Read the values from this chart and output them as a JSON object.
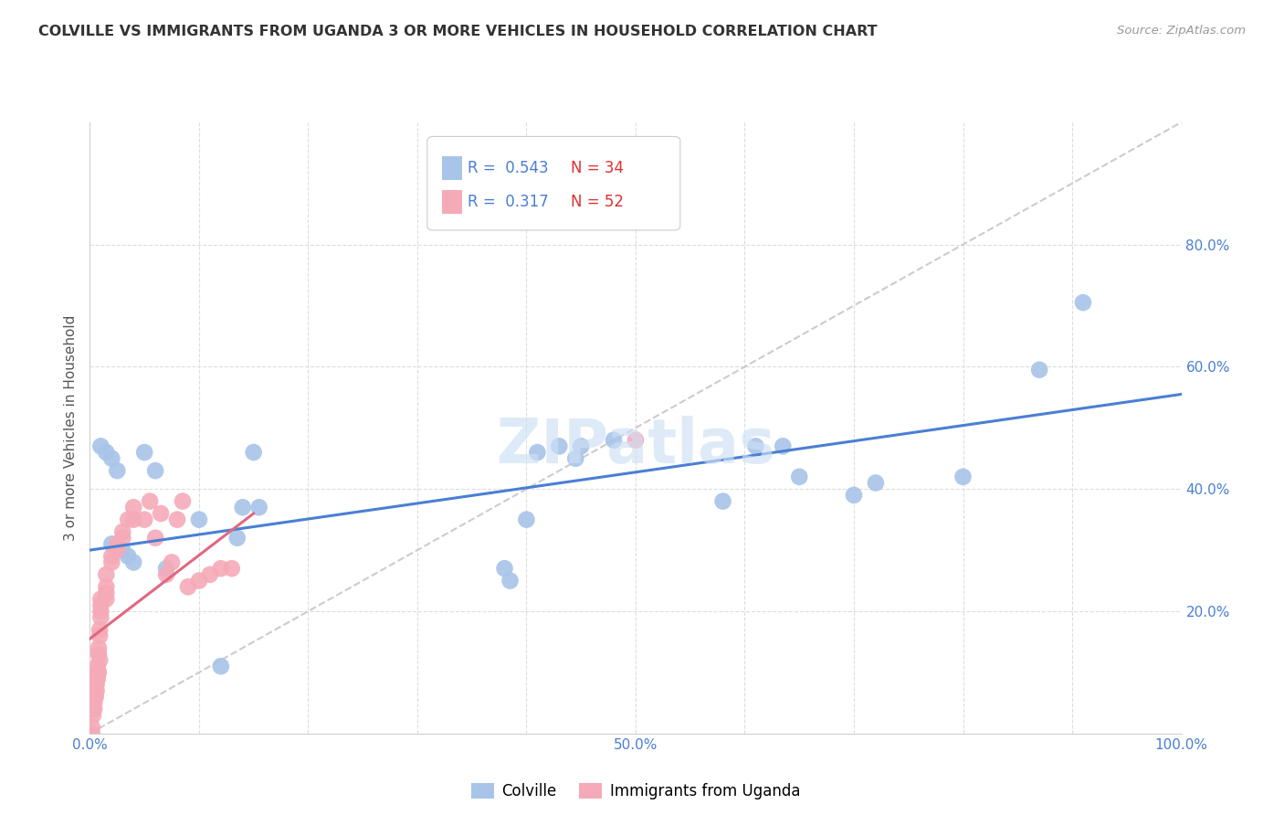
{
  "title": "COLVILLE VS IMMIGRANTS FROM UGANDA 3 OR MORE VEHICLES IN HOUSEHOLD CORRELATION CHART",
  "source": "Source: ZipAtlas.com",
  "ylabel": "3 or more Vehicles in Household",
  "xlim": [
    0.0,
    1.0
  ],
  "ylim": [
    0.0,
    1.0
  ],
  "xtick_positions": [
    0.0,
    0.1,
    0.2,
    0.3,
    0.4,
    0.5,
    0.6,
    0.7,
    0.8,
    0.9,
    1.0
  ],
  "xticklabels": [
    "0.0%",
    "",
    "",
    "",
    "",
    "50.0%",
    "",
    "",
    "",
    "",
    "100.0%"
  ],
  "ytick_positions": [
    0.0,
    0.2,
    0.4,
    0.6,
    0.8,
    1.0
  ],
  "yticklabels_right": [
    "",
    "20.0%",
    "40.0%",
    "60.0%",
    "80.0%",
    ""
  ],
  "blue_R": "0.543",
  "blue_N": "34",
  "pink_R": "0.317",
  "pink_N": "52",
  "blue_color": "#a8c4e8",
  "pink_color": "#f5aab8",
  "blue_line_color": "#4a7fd4",
  "pink_line_color": "#e06880",
  "diagonal_color": "#cccccc",
  "grid_color": "#dddddd",
  "watermark": "ZIPatlas",
  "blue_points_x": [
    0.01,
    0.015,
    0.02,
    0.025,
    0.02,
    0.03,
    0.035,
    0.04,
    0.05,
    0.06,
    0.07,
    0.1,
    0.12,
    0.135,
    0.14,
    0.15,
    0.155,
    0.38,
    0.385,
    0.41,
    0.43,
    0.445,
    0.45,
    0.48,
    0.4,
    0.58,
    0.61,
    0.635,
    0.65,
    0.7,
    0.72,
    0.8,
    0.87,
    0.91
  ],
  "blue_points_y": [
    0.47,
    0.46,
    0.45,
    0.43,
    0.31,
    0.3,
    0.29,
    0.28,
    0.46,
    0.43,
    0.27,
    0.35,
    0.11,
    0.32,
    0.37,
    0.46,
    0.37,
    0.27,
    0.25,
    0.46,
    0.47,
    0.45,
    0.47,
    0.48,
    0.35,
    0.38,
    0.47,
    0.47,
    0.42,
    0.39,
    0.41,
    0.42,
    0.595,
    0.705
  ],
  "pink_points_x": [
    0.002,
    0.003,
    0.004,
    0.005,
    0.005,
    0.006,
    0.006,
    0.007,
    0.007,
    0.008,
    0.008,
    0.009,
    0.009,
    0.01,
    0.01,
    0.01,
    0.01,
    0.015,
    0.015,
    0.015,
    0.015,
    0.02,
    0.02,
    0.025,
    0.025,
    0.03,
    0.03,
    0.035,
    0.04,
    0.04,
    0.05,
    0.055,
    0.06,
    0.065,
    0.07,
    0.075,
    0.08,
    0.085,
    0.09,
    0.1,
    0.11,
    0.12,
    0.13,
    0.5,
    0.002,
    0.003,
    0.004,
    0.005,
    0.006,
    0.007,
    0.008,
    0.009
  ],
  "pink_points_y": [
    0.0,
    0.04,
    0.05,
    0.06,
    0.07,
    0.08,
    0.09,
    0.1,
    0.11,
    0.13,
    0.14,
    0.16,
    0.17,
    0.19,
    0.2,
    0.21,
    0.22,
    0.22,
    0.23,
    0.24,
    0.26,
    0.28,
    0.29,
    0.3,
    0.31,
    0.32,
    0.33,
    0.35,
    0.35,
    0.37,
    0.35,
    0.38,
    0.32,
    0.36,
    0.26,
    0.28,
    0.35,
    0.38,
    0.24,
    0.25,
    0.26,
    0.27,
    0.27,
    0.48,
    0.01,
    0.03,
    0.04,
    0.06,
    0.07,
    0.09,
    0.1,
    0.12
  ],
  "blue_trend_x": [
    0.0,
    1.0
  ],
  "blue_trend_y": [
    0.3,
    0.555
  ],
  "pink_trend_x": [
    0.0,
    0.15
  ],
  "pink_trend_y": [
    0.155,
    0.36
  ],
  "legend_label_blue": "Colville",
  "legend_label_pink": "Immigrants from Uganda"
}
